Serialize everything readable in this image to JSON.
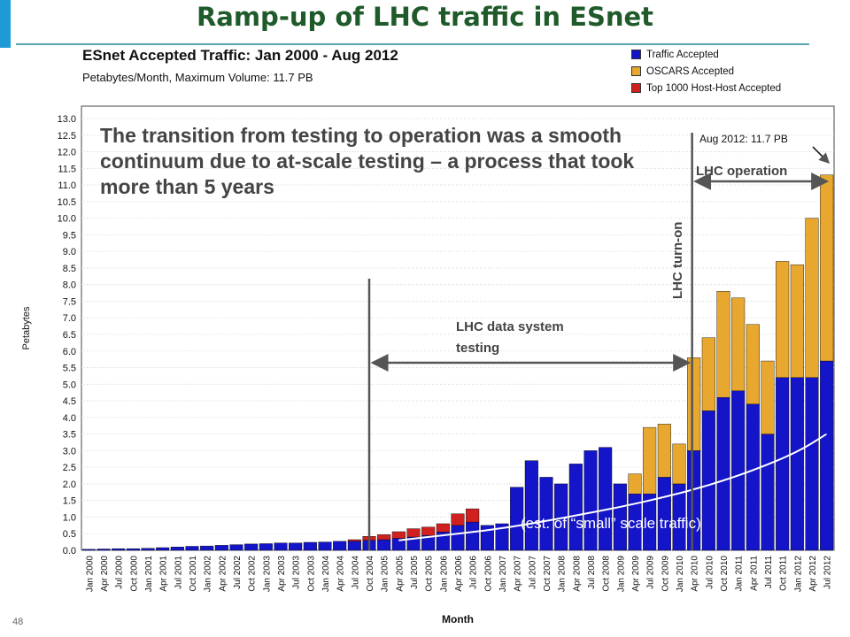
{
  "slide": {
    "title": "Ramp-up of LHC traffic in ESnet",
    "page_number": "48",
    "accent_color": "#1e9bd7",
    "overlay_text": "The transition from testing to operation was a smooth continuum due to at-scale testing – a process that took more than 5 years"
  },
  "chart_data": {
    "type": "bar",
    "title": "ESnet Accepted Traffic: Jan 2000 - Aug 2012",
    "subtitle": "Petabytes/Month, Maximum Volume: 11.7 PB",
    "xlabel": "Month",
    "ylabel": "Petabytes",
    "ylim": [
      0,
      13.0
    ],
    "yticks": [
      "0.0",
      "0.5",
      "1.0",
      "1.5",
      "2.0",
      "2.5",
      "3.0",
      "3.5",
      "4.0",
      "4.5",
      "5.0",
      "5.5",
      "6.0",
      "6.5",
      "7.0",
      "7.5",
      "8.0",
      "8.5",
      "9.0",
      "9.5",
      "10.0",
      "10.5",
      "11.0",
      "11.5",
      "12.0",
      "12.5",
      "13.0"
    ],
    "grid": true,
    "legend_position": "top-right",
    "stacked": true,
    "categories": [
      "Jan 2000",
      "Apr 2000",
      "Jul 2000",
      "Oct 2000",
      "Jan 2001",
      "Apr 2001",
      "Jul 2001",
      "Oct 2001",
      "Jan 2002",
      "Apr 2002",
      "Jul 2002",
      "Oct 2002",
      "Jan 2003",
      "Apr 2003",
      "Jul 2003",
      "Oct 2003",
      "Jan 2004",
      "Apr 2004",
      "Jul 2004",
      "Oct 2004",
      "Jan 2005",
      "Apr 2005",
      "Jul 2005",
      "Oct 2005",
      "Jan 2006",
      "Apr 2006",
      "Jul 2006",
      "Oct 2006",
      "Jan 2007",
      "Apr 2007",
      "Jul 2007",
      "Oct 2007",
      "Jan 2008",
      "Apr 2008",
      "Jul 2008",
      "Oct 2008",
      "Jan 2009",
      "Apr 2009",
      "Jul 2009",
      "Oct 2009",
      "Jan 2010",
      "Apr 2010",
      "Jul 2010",
      "Oct 2010",
      "Jan 2011",
      "Apr 2011",
      "Jul 2011",
      "Oct 2011",
      "Jan 2012",
      "Apr 2012",
      "Jul 2012"
    ],
    "series": [
      {
        "name": "Traffic Accepted",
        "color": "#1414c8",
        "values": [
          0.03,
          0.04,
          0.05,
          0.05,
          0.06,
          0.08,
          0.1,
          0.12,
          0.13,
          0.15,
          0.17,
          0.19,
          0.2,
          0.22,
          0.22,
          0.24,
          0.25,
          0.27,
          0.27,
          0.3,
          0.32,
          0.36,
          0.4,
          0.45,
          0.55,
          0.75,
          0.85,
          0.75,
          0.8,
          1.9,
          2.7,
          2.2,
          2.0,
          2.6,
          3.0,
          3.1,
          2.0,
          1.7,
          1.7,
          2.2,
          2.0,
          3.0,
          4.2,
          4.6,
          4.8,
          4.4,
          3.5,
          5.2,
          5.2,
          5.2,
          5.7
        ]
      },
      {
        "name": "OSCARS Accepted",
        "color": "#e8a830",
        "values": [
          0,
          0,
          0,
          0,
          0,
          0,
          0,
          0,
          0,
          0,
          0,
          0,
          0,
          0,
          0,
          0,
          0,
          0,
          0,
          0,
          0,
          0,
          0,
          0,
          0,
          0,
          0,
          0,
          0,
          0,
          0,
          0,
          0,
          0,
          0,
          0,
          0.0,
          0.6,
          2.0,
          1.6,
          1.2,
          2.8,
          2.2,
          3.2,
          2.8,
          2.4,
          2.2,
          3.5,
          3.4,
          4.8,
          5.6
        ]
      },
      {
        "name": "Top 1000 Host-Host Accepted",
        "color": "#d02020",
        "values": [
          0,
          0,
          0,
          0,
          0,
          0,
          0,
          0,
          0,
          0,
          0,
          0,
          0,
          0,
          0,
          0,
          0,
          0,
          0.05,
          0.12,
          0.15,
          0.2,
          0.25,
          0.25,
          0.25,
          0.35,
          0.4,
          0,
          0,
          0,
          0,
          0,
          0,
          0,
          0,
          0,
          0,
          0,
          0,
          0,
          0,
          0,
          0,
          0,
          0,
          0,
          0,
          0,
          0,
          0,
          0
        ]
      }
    ],
    "annotations": {
      "peak_label": "Aug 2012: 11.7 PB",
      "lhc_operation": "LHC operation",
      "lhc_turn_on": "LHC turn-on",
      "lhc_testing_line1": "LHC data system",
      "lhc_testing_line2": "testing",
      "small_scale": "(est. of “small” scale traffic)",
      "testing_start_category": "Oct 2004",
      "turn_on_category": "Apr 2010",
      "operation_end_category": "Jul 2012"
    },
    "small_scale_curve": [
      {
        "x": "Apr 2005",
        "y": 0.3
      },
      {
        "x": "Jan 2006",
        "y": 0.45
      },
      {
        "x": "Oct 2006",
        "y": 0.6
      },
      {
        "x": "Jul 2007",
        "y": 0.8
      },
      {
        "x": "Apr 2008",
        "y": 1.05
      },
      {
        "x": "Jan 2009",
        "y": 1.3
      },
      {
        "x": "Oct 2009",
        "y": 1.6
      },
      {
        "x": "Jul 2010",
        "y": 1.95
      },
      {
        "x": "Apr 2011",
        "y": 2.4
      },
      {
        "x": "Jan 2012",
        "y": 2.95
      },
      {
        "x": "Jul 2012",
        "y": 3.5
      }
    ]
  }
}
